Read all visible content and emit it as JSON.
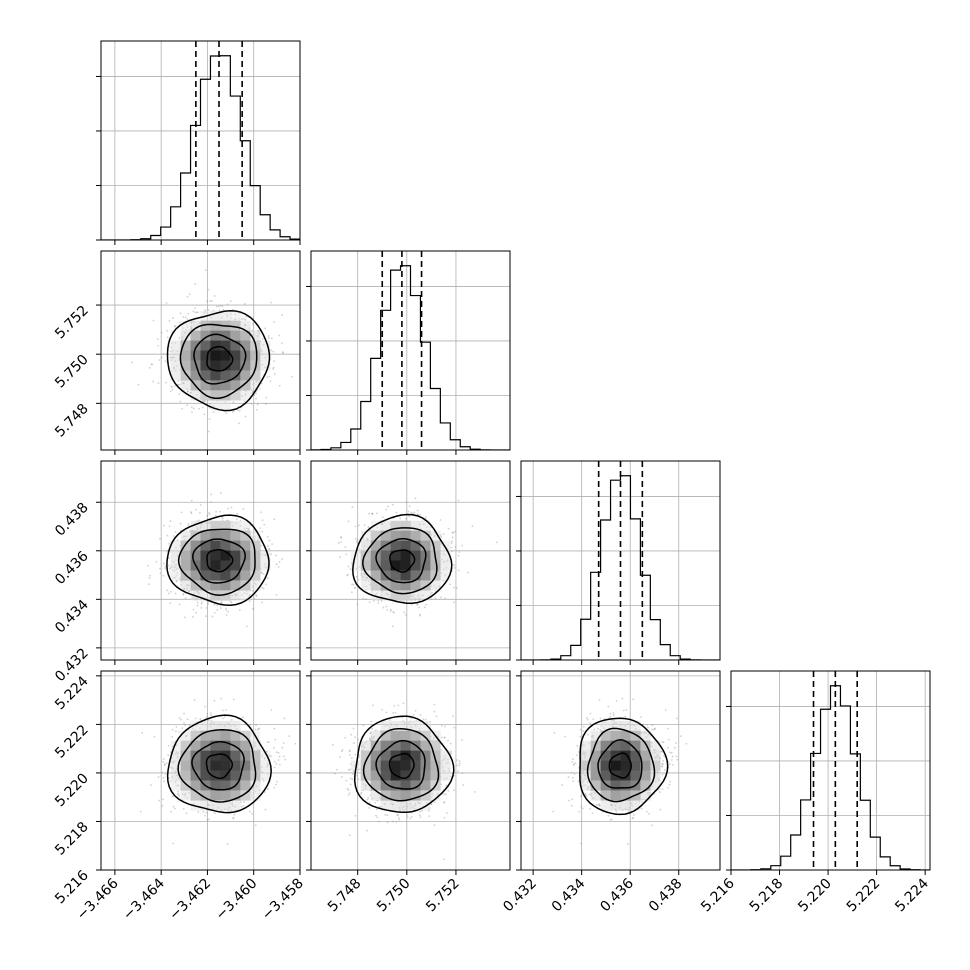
{
  "chart_data": {
    "type": "corner",
    "n_params": 4,
    "grid": true,
    "params": [
      {
        "mean": -3.4615,
        "sd": 0.001,
        "range": [
          -3.4666,
          -3.458
        ],
        "ticks": [
          -3.466,
          -3.464,
          -3.462,
          -3.46,
          -3.458
        ],
        "tick_labels": [
          "−3.466",
          "−3.464",
          "−3.462",
          "−3.460",
          "−3.458"
        ],
        "quantiles": [
          -3.4625,
          -3.4615,
          -3.4605
        ]
      },
      {
        "mean": 5.7498,
        "sd": 0.0009,
        "range": [
          5.7461,
          5.7542
        ],
        "ticks": [
          5.748,
          5.75,
          5.752
        ],
        "tick_labels": [
          "5.748",
          "5.750",
          "5.752"
        ],
        "quantiles": [
          5.749,
          5.7498,
          5.7506
        ]
      },
      {
        "mean": 0.4356,
        "sd": 0.00082,
        "range": [
          0.4315,
          0.4397
        ],
        "ticks": [
          0.432,
          0.434,
          0.436,
          0.438
        ],
        "tick_labels": [
          "0.432",
          "0.434",
          "0.436",
          "0.438"
        ],
        "quantiles": [
          0.4347,
          0.4356,
          0.4365
        ]
      },
      {
        "mean": 5.2203,
        "sd": 0.0009,
        "range": [
          5.216,
          5.2242
        ],
        "ticks": [
          5.216,
          5.218,
          5.22,
          5.222,
          5.224
        ],
        "tick_labels": [
          "5.216",
          "5.218",
          "5.220",
          "5.222",
          "5.224"
        ],
        "quantiles": [
          5.2194,
          5.2203,
          5.2212
        ]
      }
    ],
    "hist_bins": 20,
    "contour_levels_sigma": [
      0.5,
      1.0,
      1.5,
      2.0
    ],
    "hist_y_gridlines": 3
  }
}
